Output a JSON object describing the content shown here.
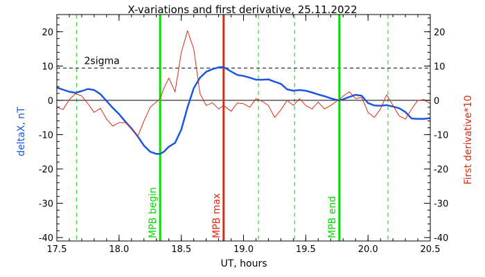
{
  "chart_data": {
    "type": "line",
    "title": "X-variations and first derivative, 25.11.2022",
    "xlabel": "UT, hours",
    "ylabel_left": "deltaX, nT",
    "ylabel_right": "First derivative*10",
    "xlim": [
      17.5,
      20.5
    ],
    "ylim": [
      -41,
      25
    ],
    "x_ticks": [
      "17.5",
      "18.0",
      "18.5",
      "19.0",
      "19.5",
      "20.0",
      "20.5"
    ],
    "y_ticks": [
      "-40",
      "-30",
      "-20",
      "-10",
      "0",
      "10",
      "20"
    ],
    "grid": false,
    "threshold": {
      "label": "2sigma",
      "value": 9.4
    },
    "markers": [
      {
        "label": "MPB begin",
        "x": 18.33,
        "color": "#00dd00"
      },
      {
        "label": "MPB max",
        "x": 18.84,
        "color": "#e8260c"
      },
      {
        "label": "MPB end",
        "x": 19.77,
        "color": "#00dd00"
      }
    ],
    "dashed_lines": [
      17.66,
      19.12,
      19.41,
      20.16
    ],
    "colors": {
      "deltaX": "#1a56e0",
      "derivative": "#d92b10",
      "mpb": "#00dd00",
      "mpb_max": "#e8260c"
    },
    "series": [
      {
        "axis": "left",
        "x": [
          17.5,
          17.55,
          17.6,
          17.65,
          17.7,
          17.75,
          17.8,
          17.85,
          17.9,
          17.95,
          18.0,
          18.05,
          18.1,
          18.15,
          18.2,
          18.25,
          18.3,
          18.33,
          18.36,
          18.4,
          18.45,
          18.5,
          18.55,
          18.6,
          18.65,
          18.7,
          18.75,
          18.8,
          18.84,
          18.9,
          18.95,
          19.0,
          19.05,
          19.1,
          19.15,
          19.2,
          19.25,
          19.3,
          19.35,
          19.4,
          19.45,
          19.5,
          19.55,
          19.6,
          19.65,
          19.7,
          19.75,
          19.77,
          19.8,
          19.85,
          19.9,
          19.95,
          20.0,
          20.05,
          20.1,
          20.15,
          20.2,
          20.25,
          20.3,
          20.35,
          20.4,
          20.45,
          20.5
        ],
        "values": [
          3.7,
          3.1,
          2.5,
          2.2,
          2.7,
          3.3,
          3.0,
          1.8,
          -0.2,
          -2.2,
          -4.0,
          -6.2,
          -8.2,
          -10.5,
          -13.2,
          -15.0,
          -15.6,
          -15.6,
          -15.0,
          -13.5,
          -12.4,
          -8.5,
          -2.0,
          3.5,
          6.6,
          8.3,
          9.1,
          9.6,
          9.7,
          8.4,
          7.4,
          7.1,
          6.6,
          6.0,
          6.0,
          6.1,
          5.4,
          4.8,
          3.2,
          2.8,
          3.0,
          2.8,
          2.3,
          1.7,
          1.2,
          0.6,
          0.1,
          0.0,
          0.3,
          1.0,
          1.6,
          1.3,
          -0.8,
          -1.5,
          -1.6,
          -1.4,
          -1.8,
          -2.3,
          -3.4,
          -5.3,
          -5.4,
          -5.4,
          -5.2
        ]
      },
      {
        "axis": "right",
        "x": [
          17.5,
          17.55,
          17.6,
          17.65,
          17.7,
          17.75,
          17.8,
          17.85,
          17.9,
          17.95,
          18.0,
          18.05,
          18.1,
          18.15,
          18.2,
          18.25,
          18.3,
          18.33,
          18.36,
          18.4,
          18.45,
          18.5,
          18.55,
          18.6,
          18.65,
          18.7,
          18.75,
          18.8,
          18.84,
          18.9,
          18.95,
          19.0,
          19.05,
          19.1,
          19.15,
          19.2,
          19.25,
          19.3,
          19.35,
          19.4,
          19.45,
          19.5,
          19.55,
          19.6,
          19.65,
          19.7,
          19.75,
          19.77,
          19.8,
          19.85,
          19.9,
          19.95,
          20.0,
          20.05,
          20.1,
          20.15,
          20.2,
          20.25,
          20.3,
          20.35,
          20.4,
          20.45,
          20.5
        ],
        "values": [
          -2.0,
          -2.7,
          0.2,
          1.9,
          1.3,
          -1.0,
          -3.5,
          -2.3,
          -5.5,
          -7.5,
          -6.5,
          -6.5,
          -8.2,
          -10.5,
          -6.0,
          -2.0,
          -0.5,
          0.5,
          3.5,
          6.5,
          2.5,
          14.0,
          20.3,
          15.0,
          2.0,
          -1.5,
          -0.7,
          -2.5,
          -1.5,
          -3.2,
          -0.8,
          -1.0,
          -2.0,
          0.5,
          -0.3,
          -1.5,
          -5.0,
          -2.8,
          0.0,
          -1.5,
          0.5,
          -1.5,
          -2.5,
          -0.5,
          -2.5,
          -1.5,
          -0.2,
          0.2,
          1.2,
          2.5,
          0.5,
          0.8,
          -3.5,
          -5.0,
          -2.5,
          1.6,
          -1.5,
          -4.5,
          -5.5,
          -2.5,
          0.0,
          0.2,
          -1.0
        ]
      }
    ]
  }
}
